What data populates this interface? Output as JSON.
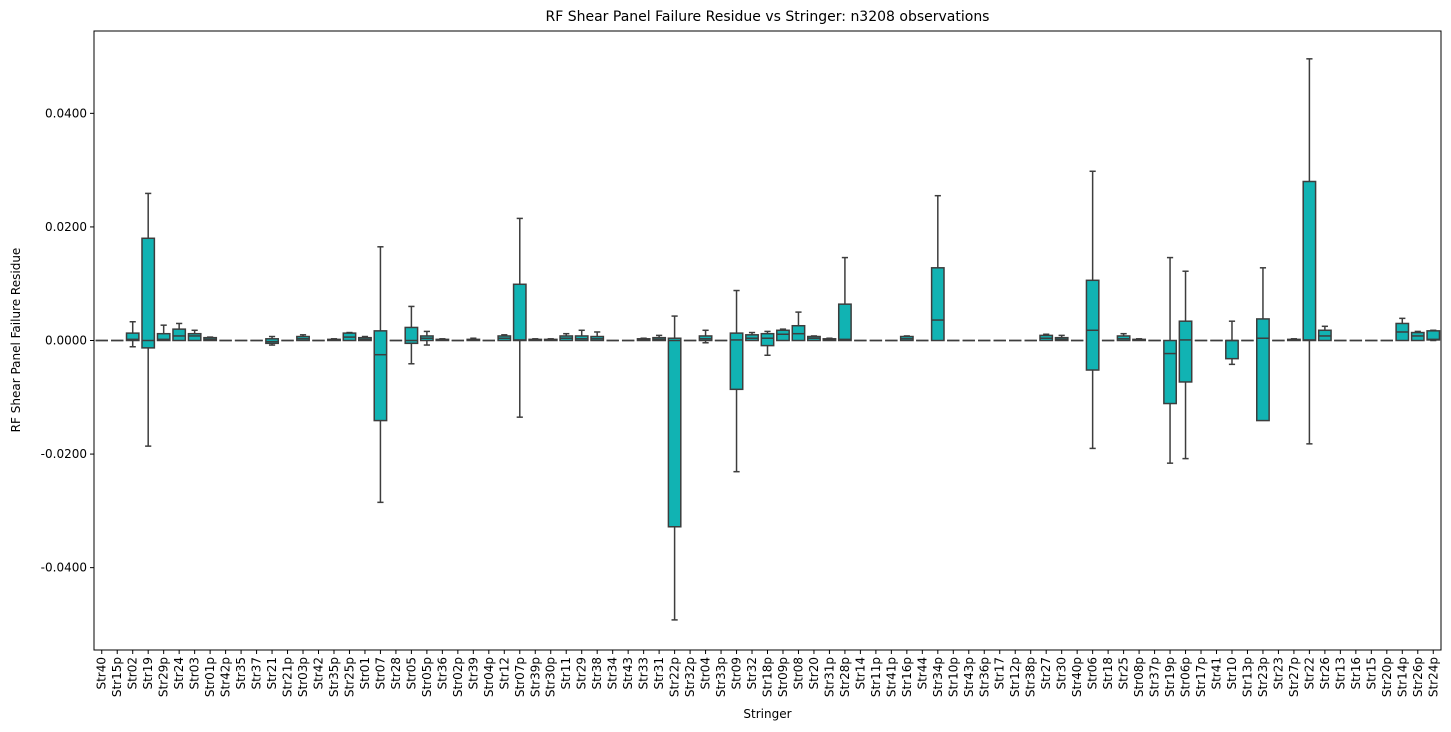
{
  "chart_data": {
    "type": "box",
    "title": "RF Shear Panel Failure Residue vs Stringer: n3208 observations",
    "xlabel": "Stringer",
    "ylabel": "RF Shear Panel Failure Residue",
    "ylim": [
      -0.0545,
      0.0545
    ],
    "yticks": [
      -0.04,
      -0.02,
      0.0,
      0.02,
      0.04
    ],
    "ytick_labels": [
      "-0.0400",
      "-0.0200",
      "0.0000",
      "0.0200",
      "0.0400"
    ],
    "box_color": "#11B3B3",
    "edge_color": "#3d3d3d",
    "categories": [
      "Str40",
      "Str15p",
      "Str02",
      "Str19",
      "Str29p",
      "Str24",
      "Str03",
      "Str01p",
      "Str42p",
      "Str35",
      "Str37",
      "Str21",
      "Str21p",
      "Str03p",
      "Str42",
      "Str35p",
      "Str25p",
      "Str01",
      "Str07",
      "Str28",
      "Str05",
      "Str05p",
      "Str36",
      "Str02p",
      "Str39",
      "Str04p",
      "Str12",
      "Str07p",
      "Str39p",
      "Str30p",
      "Str11",
      "Str29",
      "Str38",
      "Str34",
      "Str43",
      "Str33",
      "Str31",
      "Str22p",
      "Str32p",
      "Str04",
      "Str33p",
      "Str09",
      "Str32",
      "Str18p",
      "Str09p",
      "Str08",
      "Str20",
      "Str31p",
      "Str28p",
      "Str14",
      "Str11p",
      "Str41p",
      "Str16p",
      "Str44",
      "Str34p",
      "Str10p",
      "Str43p",
      "Str36p",
      "Str17",
      "Str12p",
      "Str38p",
      "Str27",
      "Str30",
      "Str40p",
      "Str06",
      "Str18",
      "Str25",
      "Str08p",
      "Str37p",
      "Str19p",
      "Str06p",
      "Str17p",
      "Str41",
      "Str10",
      "Str13p",
      "Str23p",
      "Str23",
      "Str27p",
      "Str22",
      "Str26",
      "Str13",
      "Str16",
      "Str15",
      "Str20p",
      "Str14p",
      "Str26p",
      "Str24p"
    ],
    "boxes": [
      {
        "whislo": 0,
        "q1": 0,
        "med": 0,
        "q3": 0,
        "whishi": 0
      },
      {
        "whislo": 0,
        "q1": 0,
        "med": 0,
        "q3": 0,
        "whishi": 0
      },
      {
        "whislo": -0.0011,
        "q1": 0,
        "med": 0.0002,
        "q3": 0.0013,
        "whishi": 0.0033
      },
      {
        "whislo": -0.0186,
        "q1": -0.0013,
        "med": 0,
        "q3": 0.018,
        "whishi": 0.0259
      },
      {
        "whislo": 0,
        "q1": 0,
        "med": 0.0002,
        "q3": 0.0012,
        "whishi": 0.0027
      },
      {
        "whislo": 0,
        "q1": 0,
        "med": 0.0008,
        "q3": 0.002,
        "whishi": 0.003
      },
      {
        "whislo": 0,
        "q1": 0,
        "med": 0.0008,
        "q3": 0.0012,
        "whishi": 0.0018
      },
      {
        "whislo": 0,
        "q1": 0,
        "med": 0.0002,
        "q3": 0.0005,
        "whishi": 0.0006
      },
      {
        "whislo": 0,
        "q1": 0,
        "med": 0,
        "q3": 0,
        "whishi": 0
      },
      {
        "whislo": 0,
        "q1": 0,
        "med": 0,
        "q3": 0,
        "whishi": 0
      },
      {
        "whislo": 0,
        "q1": 0,
        "med": 0,
        "q3": 0,
        "whishi": 0
      },
      {
        "whislo": -0.0008,
        "q1": -0.0005,
        "med": -0.0002,
        "q3": 0.0003,
        "whishi": 0.0007
      },
      {
        "whislo": 0,
        "q1": 0,
        "med": 0,
        "q3": 0,
        "whishi": 0
      },
      {
        "whislo": 0,
        "q1": 0,
        "med": 0.0003,
        "q3": 0.0007,
        "whishi": 0.001
      },
      {
        "whislo": 0,
        "q1": 0,
        "med": 0,
        "q3": 0,
        "whishi": 0
      },
      {
        "whislo": 0,
        "q1": 0,
        "med": 0.0001,
        "q3": 0.0002,
        "whishi": 0.0003
      },
      {
        "whislo": 0,
        "q1": 0,
        "med": 0.0006,
        "q3": 0.0013,
        "whishi": 0.0014
      },
      {
        "whislo": 0,
        "q1": 0,
        "med": 0.0002,
        "q3": 0.0005,
        "whishi": 0.0007
      },
      {
        "whislo": -0.0285,
        "q1": -0.0141,
        "med": -0.0025,
        "q3": 0.0017,
        "whishi": 0.0165
      },
      {
        "whislo": 0,
        "q1": 0,
        "med": 0,
        "q3": 0,
        "whishi": 0
      },
      {
        "whislo": -0.0041,
        "q1": -0.0005,
        "med": 0,
        "q3": 0.0023,
        "whishi": 0.006
      },
      {
        "whislo": -0.0008,
        "q1": 0,
        "med": 0.0004,
        "q3": 0.0008,
        "whishi": 0.0016
      },
      {
        "whislo": 0,
        "q1": 0,
        "med": 0.0001,
        "q3": 0.0002,
        "whishi": 0.0003
      },
      {
        "whislo": 0,
        "q1": 0,
        "med": 0,
        "q3": 0,
        "whishi": 0
      },
      {
        "whislo": 0,
        "q1": 0,
        "med": 0.0001,
        "q3": 0.0002,
        "whishi": 0.0004
      },
      {
        "whislo": 0,
        "q1": 0,
        "med": 0,
        "q3": 0,
        "whishi": 0
      },
      {
        "whislo": 0,
        "q1": 0,
        "med": 0.0004,
        "q3": 0.0008,
        "whishi": 0.001
      },
      {
        "whislo": -0.0135,
        "q1": 0,
        "med": 0.0001,
        "q3": 0.0099,
        "whishi": 0.0215
      },
      {
        "whislo": 0,
        "q1": 0,
        "med": 0.0001,
        "q3": 0.0002,
        "whishi": 0.0003
      },
      {
        "whislo": 0,
        "q1": 0,
        "med": 0.0001,
        "q3": 0.0002,
        "whishi": 0.0003
      },
      {
        "whislo": 0,
        "q1": 0,
        "med": 0.0004,
        "q3": 0.0008,
        "whishi": 0.0012
      },
      {
        "whislo": 0,
        "q1": 0,
        "med": 0.0003,
        "q3": 0.0008,
        "whishi": 0.0018
      },
      {
        "whislo": 0,
        "q1": 0,
        "med": 0.0003,
        "q3": 0.0007,
        "whishi": 0.0015
      },
      {
        "whislo": 0,
        "q1": 0,
        "med": 0,
        "q3": 0,
        "whishi": 0
      },
      {
        "whislo": 0,
        "q1": 0,
        "med": 0,
        "q3": 0,
        "whishi": 0
      },
      {
        "whislo": 0,
        "q1": 0,
        "med": 0.0001,
        "q3": 0.0003,
        "whishi": 0.0004
      },
      {
        "whislo": 0,
        "q1": 0,
        "med": 0.0002,
        "q3": 0.0005,
        "whishi": 0.0009
      },
      {
        "whislo": -0.0492,
        "q1": -0.0328,
        "med": 0,
        "q3": 0.0004,
        "whishi": 0.0043
      },
      {
        "whislo": 0,
        "q1": 0,
        "med": 0,
        "q3": 0,
        "whishi": 0
      },
      {
        "whislo": -0.0004,
        "q1": 0,
        "med": 0.0003,
        "q3": 0.0008,
        "whishi": 0.0018
      },
      {
        "whislo": 0,
        "q1": 0,
        "med": 0,
        "q3": 0,
        "whishi": 0
      },
      {
        "whislo": -0.0231,
        "q1": -0.0086,
        "med": 0.0001,
        "q3": 0.0013,
        "whishi": 0.0088
      },
      {
        "whislo": 0,
        "q1": 0,
        "med": 0.0004,
        "q3": 0.001,
        "whishi": 0.0014
      },
      {
        "whislo": -0.0026,
        "q1": -0.0009,
        "med": 0.0004,
        "q3": 0.0012,
        "whishi": 0.0016
      },
      {
        "whislo": 0,
        "q1": 0,
        "med": 0.0011,
        "q3": 0.0018,
        "whishi": 0.002
      },
      {
        "whislo": 0,
        "q1": 0,
        "med": 0.0012,
        "q3": 0.0026,
        "whishi": 0.005
      },
      {
        "whislo": 0,
        "q1": 0,
        "med": 0.0004,
        "q3": 0.0007,
        "whishi": 0.0008
      },
      {
        "whislo": 0,
        "q1": 0,
        "med": 0.0001,
        "q3": 0.0003,
        "whishi": 0.0004
      },
      {
        "whislo": 0,
        "q1": 0,
        "med": 0.0002,
        "q3": 0.0064,
        "whishi": 0.0146
      },
      {
        "whislo": 0,
        "q1": 0,
        "med": 0,
        "q3": 0,
        "whishi": 0
      },
      {
        "whislo": 0,
        "q1": 0,
        "med": 0,
        "q3": 0,
        "whishi": 0
      },
      {
        "whislo": 0,
        "q1": 0,
        "med": 0,
        "q3": 0,
        "whishi": 0
      },
      {
        "whislo": 0,
        "q1": 0,
        "med": 0.0003,
        "q3": 0.0007,
        "whishi": 0.0008
      },
      {
        "whislo": 0,
        "q1": 0,
        "med": 0,
        "q3": 0,
        "whishi": 0
      },
      {
        "whislo": 0,
        "q1": 0,
        "med": 0.0036,
        "q3": 0.0128,
        "whishi": 0.0255
      },
      {
        "whislo": 0,
        "q1": 0,
        "med": 0,
        "q3": 0,
        "whishi": 0
      },
      {
        "whislo": 0,
        "q1": 0,
        "med": 0,
        "q3": 0,
        "whishi": 0
      },
      {
        "whislo": 0,
        "q1": 0,
        "med": 0,
        "q3": 0,
        "whishi": 0
      },
      {
        "whislo": 0,
        "q1": 0,
        "med": 0,
        "q3": 0,
        "whishi": 0
      },
      {
        "whislo": 0,
        "q1": 0,
        "med": 0,
        "q3": 0,
        "whishi": 0
      },
      {
        "whislo": 0,
        "q1": 0,
        "med": 0,
        "q3": 0,
        "whishi": 0
      },
      {
        "whislo": 0,
        "q1": 0,
        "med": 0.0004,
        "q3": 0.0009,
        "whishi": 0.0011
      },
      {
        "whislo": 0,
        "q1": 0,
        "med": 0.0002,
        "q3": 0.0005,
        "whishi": 0.0009
      },
      {
        "whislo": 0,
        "q1": 0,
        "med": 0,
        "q3": 0,
        "whishi": 0
      },
      {
        "whislo": -0.019,
        "q1": -0.0052,
        "med": 0.0018,
        "q3": 0.0106,
        "whishi": 0.0298
      },
      {
        "whislo": 0,
        "q1": 0,
        "med": 0,
        "q3": 0,
        "whishi": 0
      },
      {
        "whislo": 0,
        "q1": 0,
        "med": 0.0003,
        "q3": 0.0008,
        "whishi": 0.0012
      },
      {
        "whislo": 0,
        "q1": 0,
        "med": 0.0001,
        "q3": 0.0002,
        "whishi": 0.0003
      },
      {
        "whislo": 0,
        "q1": 0,
        "med": 0,
        "q3": 0,
        "whishi": 0
      },
      {
        "whislo": -0.0216,
        "q1": -0.0111,
        "med": -0.0023,
        "q3": 0,
        "whishi": 0.0146
      },
      {
        "whislo": -0.0208,
        "q1": -0.0073,
        "med": 0.0001,
        "q3": 0.0034,
        "whishi": 0.0122
      },
      {
        "whislo": 0,
        "q1": 0,
        "med": 0,
        "q3": 0,
        "whishi": 0
      },
      {
        "whislo": 0,
        "q1": 0,
        "med": 0,
        "q3": 0,
        "whishi": 0
      },
      {
        "whislo": -0.0042,
        "q1": -0.0032,
        "med": 0,
        "q3": 0,
        "whishi": 0.0034
      },
      {
        "whislo": 0,
        "q1": 0,
        "med": 0,
        "q3": 0,
        "whishi": 0
      },
      {
        "whislo": -0.0141,
        "q1": -0.0141,
        "med": 0.0004,
        "q3": 0.0038,
        "whishi": 0.0128
      },
      {
        "whislo": 0,
        "q1": 0,
        "med": 0,
        "q3": 0,
        "whishi": 0
      },
      {
        "whislo": 0,
        "q1": 0,
        "med": 0.0001,
        "q3": 0.0002,
        "whishi": 0.0003
      },
      {
        "whislo": -0.0182,
        "q1": 0,
        "med": 0.0001,
        "q3": 0.028,
        "whishi": 0.0496
      },
      {
        "whislo": 0,
        "q1": 0,
        "med": 0.0008,
        "q3": 0.0018,
        "whishi": 0.0025
      },
      {
        "whislo": 0,
        "q1": 0,
        "med": 0,
        "q3": 0,
        "whishi": 0
      },
      {
        "whislo": 0,
        "q1": 0,
        "med": 0,
        "q3": 0,
        "whishi": 0
      },
      {
        "whislo": 0,
        "q1": 0,
        "med": 0,
        "q3": 0,
        "whishi": 0
      },
      {
        "whislo": 0,
        "q1": 0,
        "med": 0,
        "q3": 0,
        "whishi": 0
      },
      {
        "whislo": 0,
        "q1": 0,
        "med": 0.0015,
        "q3": 0.003,
        "whishi": 0.0039
      },
      {
        "whislo": 0,
        "q1": 0,
        "med": 0.0008,
        "q3": 0.0014,
        "whishi": 0.0016
      },
      {
        "whislo": 0,
        "q1": 0.0001,
        "med": 0.0002,
        "q3": 0.0017,
        "whishi": 0.0018
      }
    ]
  }
}
